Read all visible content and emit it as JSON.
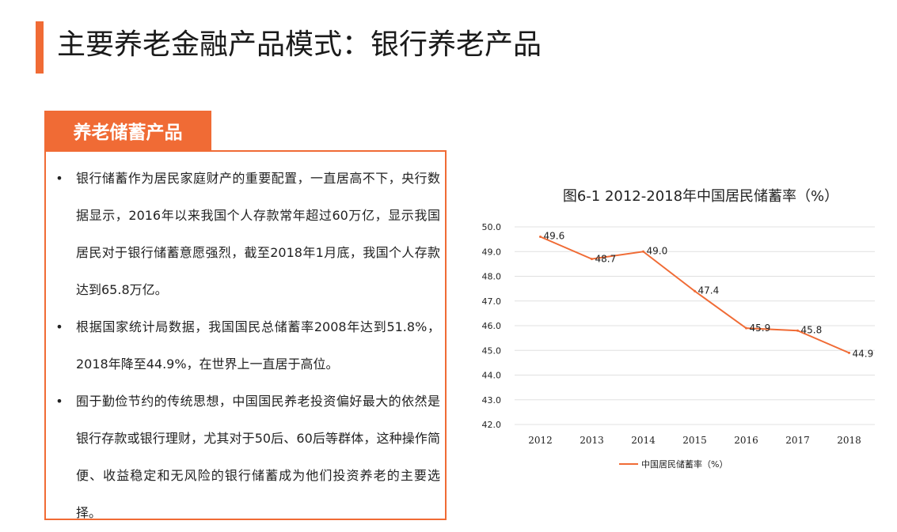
{
  "header": {
    "title": "主要养老金融产品模式：银行养老产品"
  },
  "section": {
    "tab_label": "养老储蓄产品",
    "bullets": [
      "银行储蓄作为居民家庭财产的重要配置，一直居高不下，央行数据显示，2016年以来我国个人存款常年超过60万亿，显示我国居民对于银行储蓄意愿强烈，截至2018年1月底，我国个人存款达到65.8万亿。",
      "根据国家统计局数据，我国国民总储蓄率2008年达到51.8%，2018年降至44.9%，在世界上一直居于高位。",
      "囿于勤俭节约的传统思想，中国国民养老投资偏好最大的依然是银行存款或银行理财，尤其对于50后、60后等群体，这种操作简便、收益稳定和无风险的银行储蓄成为他们投资养老的主要选择。"
    ],
    "bullet_glyph": "•"
  },
  "colors": {
    "accent": "#f06b35",
    "grid": "#e0e0e0",
    "text": "#222222"
  },
  "chart_data": {
    "type": "line",
    "title": "图6-1 2012-2018年中国居民储蓄率（%）",
    "categories": [
      "2012",
      "2013",
      "2014",
      "2015",
      "2016",
      "2017",
      "2018"
    ],
    "series": [
      {
        "name": "中国居民储蓄率（%）",
        "values": [
          49.6,
          48.7,
          49.0,
          47.4,
          45.9,
          45.8,
          44.9
        ]
      }
    ],
    "data_labels": [
      "49.6",
      "48.7",
      "49.0",
      "47.4",
      "45.9",
      "45.8",
      "44.9"
    ],
    "yticks": [
      "42.0",
      "43.0",
      "44.0",
      "45.0",
      "46.0",
      "47.0",
      "48.0",
      "49.0",
      "50.0"
    ],
    "ylim": [
      42.0,
      50.0
    ],
    "grid": true,
    "legend_position": "bottom",
    "xlabel": "",
    "ylabel": ""
  }
}
